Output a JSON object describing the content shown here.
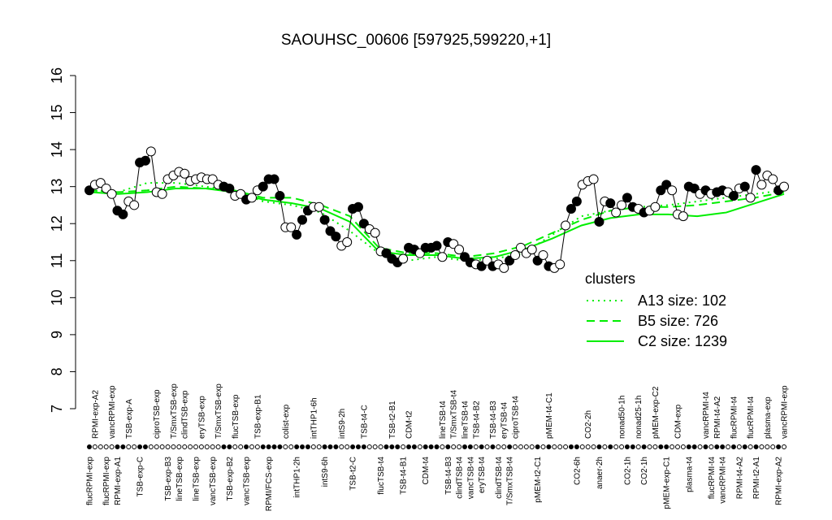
{
  "chart_data": {
    "type": "line",
    "title": "SAOUHSC_00606 [597925,599220,+1]",
    "categories": [
      "flucRPMI-exp",
      "RPMI-exp-A2",
      null,
      "flucRPMI-exp",
      "vancRPMI-exp",
      "RPMI-exp-A1",
      null,
      "TSB-exp-A",
      null,
      "TSB-exp-C",
      null,
      null,
      "ciproTSB-exp",
      null,
      "TSB-exp-B3",
      "T/SmxTSB-exp",
      "lineTSB-exp",
      "clindTSB-exp",
      null,
      "lineTSB-exp",
      "eryTSB-exp",
      null,
      "vancTSB-exp",
      "T/SmxTSB-exp",
      null,
      "TSB-exp-B2",
      "flucTSB-exp",
      null,
      "vancTSB-exp",
      null,
      "TSB-exp-B1",
      null,
      "RPMI/FCS-exp",
      null,
      null,
      "colist-exp",
      null,
      "intTHP1-2h",
      null,
      null,
      "intTHP1-6h",
      null,
      "intS9-6h",
      null,
      null,
      "intS9-2h",
      null,
      "TSB-t2-C",
      null,
      "TSB-t4-C",
      null,
      null,
      "flucTSB-t4",
      null,
      "TSB-t2-B1",
      null,
      "TSB-t4-B1",
      "CDM-t2",
      null,
      null,
      "CDM-t4",
      null,
      null,
      "lineTSB-t4",
      "TSB-t4-B3",
      "T/SmxTSB-t4",
      "clindTSB-t4",
      "lineTSB-t4",
      "vancTSB-t4",
      "TSB-t4-B2",
      "eryTSB-t4",
      null,
      "TSB-t4-B3",
      "clindTSB-t4",
      "eryTSB-t4",
      "T/SmxTSB-t4",
      "ciproTSB-t4",
      null,
      null,
      null,
      "pMEM-t2-C1",
      null,
      "pMEM-t4-C1",
      null,
      null,
      null,
      null,
      "CO2-6h",
      null,
      "CO2-2h",
      null,
      "anaer-2h",
      null,
      null,
      null,
      "nonad50-1h",
      "CO2-1h",
      null,
      "nonad25-1h",
      "CO2-1h",
      null,
      "pMEM-exp-C2",
      null,
      "pMEM-exp-C1",
      null,
      "CDM-exp",
      null,
      "plasma-t4",
      null,
      null,
      "vancRPMI-t4",
      "flucRPMI-t4",
      "RPMI-t4-A2",
      "vancRPMI-t4",
      null,
      "flucRPMI-t4",
      "RPMI-t4-A2",
      null,
      "flucRPMI-t4",
      "RPMI-t2-A1",
      null,
      "plasma-exp",
      null,
      "RPMI-exp-A2",
      "vancRPMI-exp"
    ],
    "series": [
      {
        "color": "#000000",
        "values": [
          12.9,
          13.05,
          13.1,
          12.95,
          12.8,
          12.35,
          12.25,
          12.6,
          12.5,
          13.65,
          13.7,
          13.95,
          12.85,
          12.8,
          13.2,
          13.3,
          13.4,
          13.35,
          13.15,
          13.2,
          13.25,
          13.2,
          13.2,
          13.05,
          13.0,
          12.95,
          12.75,
          12.8,
          12.65,
          12.7,
          12.9,
          13.0,
          13.2,
          13.2,
          12.75,
          11.9,
          11.9,
          11.7,
          12.1,
          12.35,
          12.45,
          12.45,
          12.1,
          11.8,
          11.65,
          11.4,
          11.5,
          12.4,
          12.45,
          12.0,
          11.85,
          11.75,
          11.25,
          11.2,
          11.05,
          10.95,
          11.05,
          11.35,
          11.3,
          11.2,
          11.35,
          11.35,
          11.4,
          11.1,
          11.5,
          11.45,
          11.3,
          11.1,
          10.95,
          10.9,
          10.85,
          11.0,
          10.85,
          10.9,
          10.8,
          11.0,
          11.15,
          11.35,
          11.2,
          11.3,
          11.0,
          11.15,
          10.85,
          10.8,
          10.9,
          11.95,
          12.4,
          12.6,
          13.05,
          13.15,
          13.2,
          12.05,
          12.6,
          12.55,
          12.3,
          12.5,
          12.7,
          12.45,
          12.4,
          12.3,
          12.35,
          12.45,
          12.9,
          13.05,
          12.9,
          12.25,
          12.2,
          13.0,
          12.95,
          12.8,
          12.9,
          12.8,
          12.85,
          12.9,
          12.85,
          12.75,
          12.95,
          13.0,
          12.7,
          13.45,
          13.05,
          13.3,
          13.2,
          12.9,
          13.0
        ],
        "filled": [
          true,
          false,
          false,
          false,
          false,
          true,
          true,
          false,
          false,
          true,
          true,
          false,
          false,
          false,
          false,
          false,
          false,
          false,
          false,
          false,
          false,
          false,
          false,
          false,
          true,
          true,
          false,
          false,
          true,
          false,
          false,
          true,
          true,
          true,
          true,
          false,
          false,
          true,
          true,
          true,
          false,
          false,
          true,
          true,
          true,
          false,
          false,
          true,
          true,
          true,
          false,
          false,
          false,
          true,
          true,
          true,
          false,
          true,
          true,
          false,
          true,
          true,
          true,
          false,
          true,
          false,
          false,
          true,
          true,
          false,
          true,
          false,
          true,
          false,
          false,
          true,
          false,
          false,
          false,
          false,
          true,
          false,
          true,
          false,
          false,
          false,
          true,
          true,
          false,
          false,
          false,
          true,
          false,
          true,
          false,
          false,
          true,
          true,
          false,
          true,
          false,
          false,
          true,
          true,
          false,
          false,
          false,
          true,
          true,
          false,
          true,
          false,
          true,
          true,
          false,
          true,
          false,
          true,
          false,
          true,
          false,
          false,
          false,
          true,
          false
        ]
      }
    ],
    "ylim": [
      7,
      16
    ],
    "yticks": [
      7,
      8,
      9,
      10,
      11,
      12,
      13,
      14,
      15,
      16
    ],
    "clusters": {
      "title": "clusters",
      "color": "#00ee00",
      "series": [
        {
          "name": "A13 size: 102",
          "dash": "dotted",
          "values": [
            12.9,
            12.85,
            13.1,
            13.1,
            13.0,
            12.9,
            12.6,
            12.5,
            12.3,
            11.8,
            11.2,
            11.0,
            11.1,
            11.0,
            11.05,
            11.2,
            11.7,
            12.2,
            12.35,
            12.45,
            12.5,
            12.6,
            12.7,
            12.8,
            12.9
          ]
        },
        {
          "name": "B5 size: 726",
          "dash": "dashed",
          "values": [
            12.9,
            12.85,
            12.9,
            13.0,
            12.95,
            12.9,
            12.7,
            12.7,
            12.5,
            12.2,
            11.35,
            11.2,
            11.2,
            11.1,
            11.2,
            11.4,
            11.75,
            12.1,
            12.35,
            12.45,
            12.45,
            12.5,
            12.6,
            12.7,
            12.85
          ]
        },
        {
          "name": "C2 size: 1239",
          "dash": "solid",
          "values": [
            12.85,
            12.8,
            12.85,
            12.95,
            12.95,
            12.85,
            12.65,
            12.55,
            12.4,
            12.05,
            11.25,
            11.15,
            11.15,
            11.05,
            11.1,
            11.3,
            11.6,
            11.95,
            12.15,
            12.25,
            12.25,
            12.2,
            12.3,
            12.55,
            12.8
          ]
        }
      ]
    }
  }
}
